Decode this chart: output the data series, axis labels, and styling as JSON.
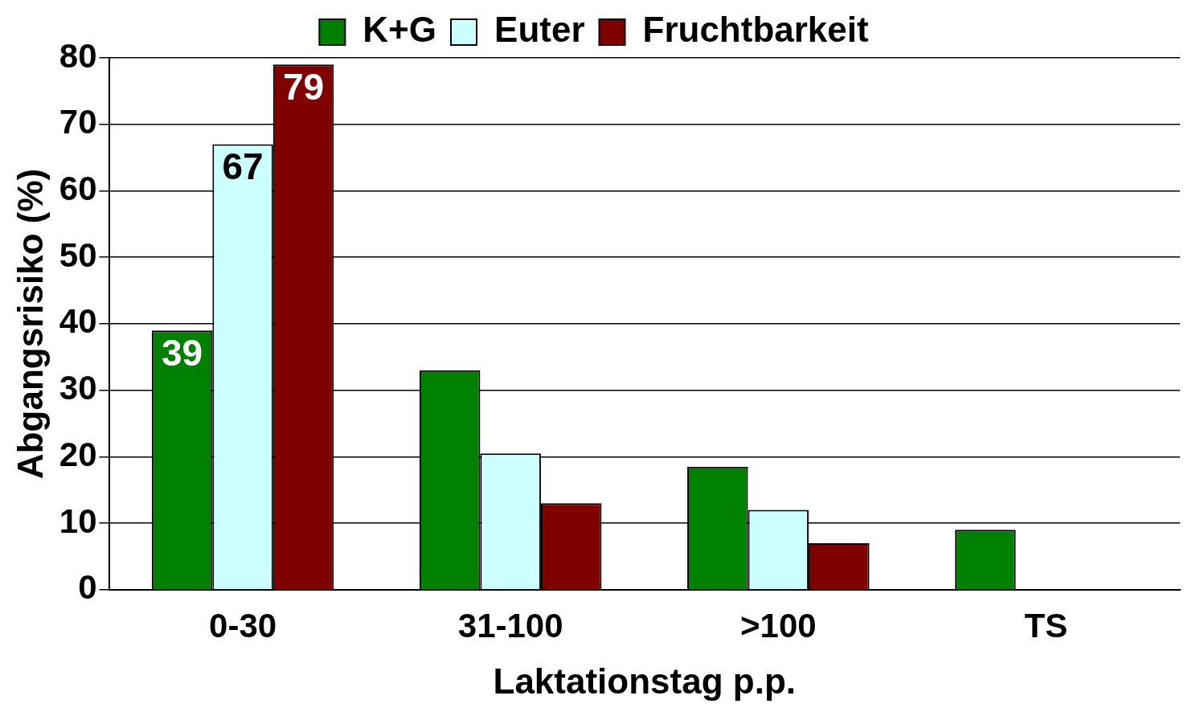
{
  "chart_data": {
    "type": "bar",
    "xlabel": "Laktationstag p.p.",
    "ylabel": "Abgangsrisiko (%)",
    "categories": [
      "0-30",
      "31-100",
      ">100",
      "TS"
    ],
    "series": [
      {
        "name": "K+G",
        "color": "#008000",
        "values": [
          39,
          33,
          18.5,
          9
        ],
        "value_labels": [
          "39",
          null,
          null,
          null
        ]
      },
      {
        "name": "Euter",
        "color": "#ccffff",
        "values": [
          67,
          20.5,
          12,
          0
        ],
        "value_labels": [
          "67",
          null,
          null,
          null
        ]
      },
      {
        "name": "Fruchtbarkeit",
        "color": "#800000",
        "values": [
          79,
          13,
          7,
          0
        ],
        "value_labels": [
          "79",
          null,
          null,
          null
        ]
      }
    ],
    "ylim": [
      0,
      80
    ],
    "yticks": [
      0,
      10,
      20,
      30,
      40,
      50,
      60,
      70,
      80
    ],
    "grid": "y",
    "legend": "top"
  }
}
